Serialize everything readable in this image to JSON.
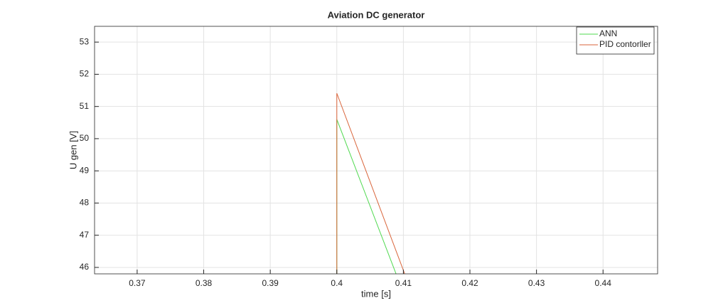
{
  "chart_data": {
    "type": "line",
    "title": "Aviation DC generator",
    "xlabel": "time [s]",
    "ylabel": "U gen [V]",
    "xlim": [
      0.3636,
      0.4482
    ],
    "ylim": [
      45.8,
      53.49
    ],
    "xticks": [
      0.37,
      0.38,
      0.39,
      0.4,
      0.41,
      0.42,
      0.43,
      0.44
    ],
    "yticks": [
      46,
      47,
      48,
      49,
      50,
      51,
      52,
      53
    ],
    "grid": true,
    "legend": "upper right",
    "series": [
      {
        "name": "ANN",
        "color": "#4fd94f",
        "x": [
          0.4,
          0.4,
          0.4089
        ],
        "values": [
          45.8,
          50.6,
          45.8
        ]
      },
      {
        "name": "PID contorller",
        "color": "#d9653b",
        "x": [
          0.4,
          0.4,
          0.4102
        ],
        "values": [
          45.8,
          51.41,
          45.8
        ]
      }
    ]
  }
}
